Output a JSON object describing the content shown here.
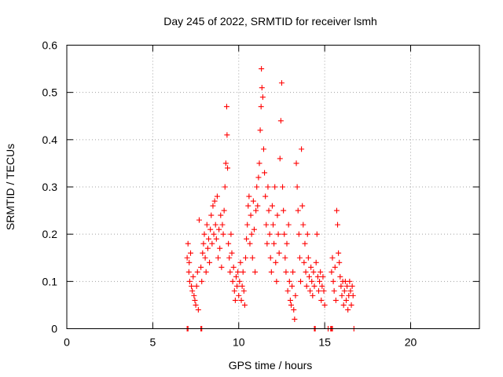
{
  "chart_data": {
    "type": "scatter",
    "title": "Day 245 of 2022, SRMTID for receiver lsmh",
    "xlabel": "GPS time / hours",
    "ylabel": "SRMTID / TECUs",
    "xlim": [
      0,
      24
    ],
    "ylim": [
      0,
      0.6
    ],
    "xticks": [
      0,
      5,
      10,
      15,
      20
    ],
    "yticks": [
      0,
      0.1,
      0.2,
      0.3,
      0.4,
      0.5,
      0.6
    ],
    "xtick_labels": [
      "0",
      "5",
      "10",
      "15",
      "20"
    ],
    "ytick_labels": [
      "0",
      "0.1",
      "0.2",
      "0.3",
      "0.4",
      "0.5",
      "0.6"
    ],
    "grid": true,
    "marker": "+",
    "color": "#ff0000",
    "series": [
      {
        "name": "SRMTID",
        "points": [
          [
            7.0,
            0.15
          ],
          [
            7.05,
            0.18
          ],
          [
            7.1,
            0.12
          ],
          [
            7.12,
            0.14
          ],
          [
            7.15,
            0.1
          ],
          [
            7.2,
            0.16
          ],
          [
            7.25,
            0.09
          ],
          [
            7.3,
            0.08
          ],
          [
            7.35,
            0.11
          ],
          [
            7.4,
            0.07
          ],
          [
            7.45,
            0.06
          ],
          [
            7.5,
            0.05
          ],
          [
            7.55,
            0.09
          ],
          [
            7.6,
            0.12
          ],
          [
            7.65,
            0.04
          ],
          [
            7.7,
            0.23
          ],
          [
            7.8,
            0.13
          ],
          [
            7.85,
            0.1
          ],
          [
            7.9,
            0.16
          ],
          [
            7.95,
            0.18
          ],
          [
            8.0,
            0.2
          ],
          [
            8.05,
            0.15
          ],
          [
            8.1,
            0.12
          ],
          [
            8.15,
            0.22
          ],
          [
            8.2,
            0.17
          ],
          [
            8.25,
            0.19
          ],
          [
            8.3,
            0.14
          ],
          [
            8.35,
            0.21
          ],
          [
            8.4,
            0.24
          ],
          [
            8.45,
            0.18
          ],
          [
            8.5,
            0.26
          ],
          [
            8.55,
            0.2
          ],
          [
            8.6,
            0.27
          ],
          [
            8.65,
            0.22
          ],
          [
            8.7,
            0.19
          ],
          [
            8.75,
            0.28
          ],
          [
            8.8,
            0.15
          ],
          [
            8.85,
            0.21
          ],
          [
            8.9,
            0.17
          ],
          [
            8.95,
            0.24
          ],
          [
            9.0,
            0.13
          ],
          [
            9.05,
            0.22
          ],
          [
            9.1,
            0.2
          ],
          [
            9.15,
            0.25
          ],
          [
            9.2,
            0.3
          ],
          [
            9.25,
            0.35
          ],
          [
            9.3,
            0.47
          ],
          [
            9.32,
            0.41
          ],
          [
            9.35,
            0.34
          ],
          [
            9.4,
            0.18
          ],
          [
            9.45,
            0.15
          ],
          [
            9.5,
            0.12
          ],
          [
            9.55,
            0.2
          ],
          [
            9.6,
            0.16
          ],
          [
            9.65,
            0.1
          ],
          [
            9.7,
            0.13
          ],
          [
            9.75,
            0.08
          ],
          [
            9.8,
            0.06
          ],
          [
            9.85,
            0.11
          ],
          [
            9.9,
            0.09
          ],
          [
            9.95,
            0.12
          ],
          [
            10.0,
            0.07
          ],
          [
            10.05,
            0.1
          ],
          [
            10.1,
            0.14
          ],
          [
            10.15,
            0.06
          ],
          [
            10.2,
            0.09
          ],
          [
            10.25,
            0.12
          ],
          [
            10.3,
            0.08
          ],
          [
            10.35,
            0.05
          ],
          [
            10.4,
            0.15
          ],
          [
            10.45,
            0.19
          ],
          [
            10.5,
            0.22
          ],
          [
            10.55,
            0.26
          ],
          [
            10.6,
            0.28
          ],
          [
            10.65,
            0.18
          ],
          [
            10.7,
            0.24
          ],
          [
            10.75,
            0.2
          ],
          [
            10.8,
            0.15
          ],
          [
            10.85,
            0.27
          ],
          [
            10.9,
            0.21
          ],
          [
            10.95,
            0.12
          ],
          [
            11.0,
            0.25
          ],
          [
            11.05,
            0.3
          ],
          [
            11.1,
            0.26
          ],
          [
            11.15,
            0.32
          ],
          [
            11.2,
            0.35
          ],
          [
            11.25,
            0.42
          ],
          [
            11.3,
            0.47
          ],
          [
            11.32,
            0.55
          ],
          [
            11.35,
            0.51
          ],
          [
            11.4,
            0.49
          ],
          [
            11.45,
            0.38
          ],
          [
            11.5,
            0.33
          ],
          [
            11.55,
            0.28
          ],
          [
            11.6,
            0.22
          ],
          [
            11.65,
            0.18
          ],
          [
            11.7,
            0.3
          ],
          [
            11.75,
            0.25
          ],
          [
            11.8,
            0.2
          ],
          [
            11.85,
            0.15
          ],
          [
            11.9,
            0.12
          ],
          [
            11.95,
            0.26
          ],
          [
            12.0,
            0.22
          ],
          [
            12.05,
            0.18
          ],
          [
            12.1,
            0.3
          ],
          [
            12.15,
            0.14
          ],
          [
            12.2,
            0.1
          ],
          [
            12.25,
            0.24
          ],
          [
            12.3,
            0.2
          ],
          [
            12.35,
            0.16
          ],
          [
            12.4,
            0.36
          ],
          [
            12.45,
            0.44
          ],
          [
            12.5,
            0.52
          ],
          [
            12.55,
            0.3
          ],
          [
            12.6,
            0.25
          ],
          [
            12.65,
            0.2
          ],
          [
            12.7,
            0.15
          ],
          [
            12.75,
            0.12
          ],
          [
            12.8,
            0.18
          ],
          [
            12.85,
            0.08
          ],
          [
            12.9,
            0.22
          ],
          [
            12.95,
            0.1
          ],
          [
            13.0,
            0.06
          ],
          [
            13.05,
            0.05
          ],
          [
            13.1,
            0.09
          ],
          [
            13.15,
            0.12
          ],
          [
            13.2,
            0.04
          ],
          [
            13.25,
            0.02
          ],
          [
            13.3,
            0.07
          ],
          [
            13.35,
            0.35
          ],
          [
            13.4,
            0.3
          ],
          [
            13.45,
            0.25
          ],
          [
            13.5,
            0.2
          ],
          [
            13.55,
            0.15
          ],
          [
            13.6,
            0.1
          ],
          [
            13.65,
            0.38
          ],
          [
            13.7,
            0.26
          ],
          [
            13.75,
            0.22
          ],
          [
            13.8,
            0.14
          ],
          [
            13.85,
            0.18
          ],
          [
            13.9,
            0.12
          ],
          [
            13.95,
            0.09
          ],
          [
            14.0,
            0.2
          ],
          [
            14.05,
            0.15
          ],
          [
            14.1,
            0.11
          ],
          [
            14.15,
            0.08
          ],
          [
            14.2,
            0.13
          ],
          [
            14.25,
            0.1
          ],
          [
            14.3,
            0.07
          ],
          [
            14.35,
            0.12
          ],
          [
            14.4,
            0.09
          ],
          [
            14.5,
            0.14
          ],
          [
            14.55,
            0.2
          ],
          [
            14.6,
            0.11
          ],
          [
            14.65,
            0.08
          ],
          [
            14.7,
            0.1
          ],
          [
            14.75,
            0.12
          ],
          [
            14.8,
            0.06
          ],
          [
            14.85,
            0.09
          ],
          [
            14.9,
            0.11
          ],
          [
            14.95,
            0.08
          ],
          [
            15.0,
            0.05
          ],
          [
            15.4,
            0.12
          ],
          [
            15.45,
            0.15
          ],
          [
            15.5,
            0.1
          ],
          [
            15.55,
            0.08
          ],
          [
            15.6,
            0.13
          ],
          [
            15.65,
            0.06
          ],
          [
            15.7,
            0.25
          ],
          [
            15.75,
            0.22
          ],
          [
            15.8,
            0.16
          ],
          [
            15.85,
            0.14
          ],
          [
            15.9,
            0.11
          ],
          [
            15.95,
            0.09
          ],
          [
            16.0,
            0.07
          ],
          [
            16.05,
            0.1
          ],
          [
            16.1,
            0.05
          ],
          [
            16.15,
            0.08
          ],
          [
            16.2,
            0.1
          ],
          [
            16.25,
            0.06
          ],
          [
            16.3,
            0.09
          ],
          [
            16.35,
            0.04
          ],
          [
            16.4,
            0.07
          ],
          [
            16.45,
            0.1
          ],
          [
            16.5,
            0.08
          ],
          [
            16.55,
            0.05
          ],
          [
            16.6,
            0.09
          ],
          [
            16.65,
            0.07
          ],
          [
            7.0,
            0.0
          ],
          [
            7.05,
            0.0
          ],
          [
            7.8,
            0.0
          ],
          [
            7.85,
            0.0
          ],
          [
            14.4,
            0.0
          ],
          [
            14.45,
            0.0
          ],
          [
            15.2,
            0.0
          ],
          [
            15.35,
            0.0
          ],
          [
            15.4,
            0.0
          ],
          [
            15.45,
            0.0
          ],
          [
            16.7,
            0.0
          ]
        ]
      }
    ]
  }
}
